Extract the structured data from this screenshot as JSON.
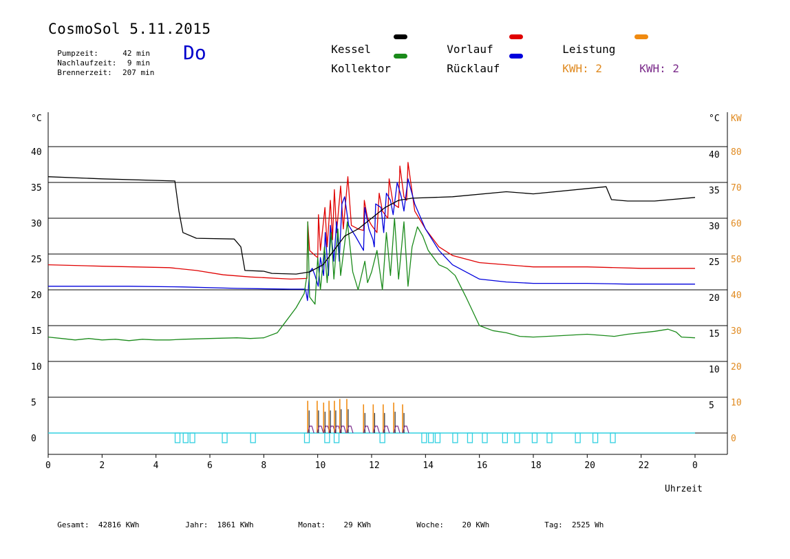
{
  "header": {
    "title": "CosmoSol 5.11.2015",
    "day": "Do",
    "info": [
      {
        "label": "Pumpzeit:",
        "value": "42 min"
      },
      {
        "label": "Nachlaufzeit:",
        "value": "9 min"
      },
      {
        "label": "Brennerzeit:",
        "value": "207 min"
      }
    ]
  },
  "legend": [
    {
      "label": "Kessel",
      "color": "#000000"
    },
    {
      "label": "Vorlauf",
      "color": "#e00000"
    },
    {
      "label": "Leistung",
      "color": "#f08a10"
    },
    {
      "label": "Kollektor",
      "color": "#1a8a1a"
    },
    {
      "label": "Rücklauf",
      "color": "#0000dd"
    },
    {
      "label": "KWH: 2",
      "color": "#e08a20"
    },
    {
      "label": "KWH: 2",
      "color": "#7a2a8a"
    }
  ],
  "footer": [
    {
      "label": "Gesamt:",
      "value": "42816 KWh"
    },
    {
      "label": "Jahr:",
      "value": "1861 KWh"
    },
    {
      "label": "Monat:",
      "value": "29 KWh"
    },
    {
      "label": "Woche:",
      "value": "20 KWh"
    },
    {
      "label": "Tag:",
      "value": "2525 Wh"
    }
  ],
  "chart_data": {
    "type": "line",
    "xlabel": "Uhrzeit",
    "x_ticks": [
      "0",
      "2",
      "4",
      "6",
      "8",
      "10",
      "12",
      "14",
      "16",
      "18",
      "20",
      "22",
      "0"
    ],
    "xlim": [
      0,
      24
    ],
    "left_axis": {
      "unit": "°C",
      "ticks": [
        0,
        5,
        10,
        15,
        20,
        25,
        30,
        35,
        40
      ],
      "range": [
        0,
        40
      ]
    },
    "right_axis_temp": {
      "unit": "°C",
      "ticks": [
        5,
        10,
        15,
        20,
        25,
        30,
        35,
        40
      ]
    },
    "right_axis_power": {
      "unit": "KW",
      "ticks": [
        0,
        10,
        20,
        30,
        40,
        50,
        60,
        70,
        80
      ],
      "range": [
        0,
        80
      ]
    },
    "series": [
      {
        "name": "Kessel",
        "color": "#000000",
        "points": [
          [
            0,
            35.8
          ],
          [
            2,
            35.5
          ],
          [
            4.7,
            35.2
          ],
          [
            4.85,
            31
          ],
          [
            5,
            28
          ],
          [
            5.5,
            27.2
          ],
          [
            6.9,
            27.1
          ],
          [
            7.15,
            26
          ],
          [
            7.3,
            22.7
          ],
          [
            8,
            22.6
          ],
          [
            8.3,
            22.3
          ],
          [
            9.2,
            22.2
          ],
          [
            9.7,
            22.5
          ],
          [
            10.2,
            23.5
          ],
          [
            10.6,
            25.5
          ],
          [
            11,
            27.5
          ],
          [
            11.5,
            28.5
          ],
          [
            12,
            30
          ],
          [
            12.5,
            31.5
          ],
          [
            13,
            32.5
          ],
          [
            13.5,
            32.8
          ],
          [
            15,
            33
          ],
          [
            17,
            33.7
          ],
          [
            18,
            33.4
          ],
          [
            20.7,
            34.4
          ],
          [
            20.9,
            32.6
          ],
          [
            21.5,
            32.4
          ],
          [
            22.5,
            32.4
          ],
          [
            24,
            32.9
          ]
        ]
      },
      {
        "name": "Vorlauf",
        "color": "#e00000",
        "points": [
          [
            0,
            23.5
          ],
          [
            2,
            23.3
          ],
          [
            4.5,
            23.1
          ],
          [
            5.5,
            22.7
          ],
          [
            6.5,
            22.1
          ],
          [
            7.5,
            21.8
          ],
          [
            9,
            21.5
          ],
          [
            9.6,
            21.6
          ],
          [
            9.63,
            29.5
          ],
          [
            9.7,
            25.5
          ],
          [
            9.9,
            24.8
          ],
          [
            10.0,
            24.5
          ],
          [
            10.03,
            30.5
          ],
          [
            10.1,
            25.5
          ],
          [
            10.27,
            31.5
          ],
          [
            10.35,
            26
          ],
          [
            10.47,
            32.5
          ],
          [
            10.55,
            27
          ],
          [
            10.62,
            34
          ],
          [
            10.7,
            28
          ],
          [
            10.85,
            34.5
          ],
          [
            10.95,
            28.5
          ],
          [
            11.12,
            35.8
          ],
          [
            11.25,
            29
          ],
          [
            11.5,
            28.5
          ],
          [
            11.7,
            28.3
          ],
          [
            11.73,
            32.5
          ],
          [
            11.85,
            30
          ],
          [
            12.0,
            29
          ],
          [
            12.2,
            28
          ],
          [
            12.28,
            33.5
          ],
          [
            12.4,
            31
          ],
          [
            12.6,
            30
          ],
          [
            12.65,
            35.5
          ],
          [
            12.8,
            32
          ],
          [
            13.0,
            31.5
          ],
          [
            13.05,
            37.3
          ],
          [
            13.2,
            33
          ],
          [
            13.3,
            32.5
          ],
          [
            13.35,
            37.8
          ],
          [
            13.6,
            31
          ],
          [
            14,
            28.5
          ],
          [
            14.5,
            26
          ],
          [
            15,
            24.8
          ],
          [
            16,
            23.8
          ],
          [
            17,
            23.5
          ],
          [
            18,
            23.2
          ],
          [
            20,
            23.2
          ],
          [
            22,
            23
          ],
          [
            24,
            23
          ]
        ]
      },
      {
        "name": "Rücklauf",
        "color": "#0000dd",
        "points": [
          [
            0,
            20.5
          ],
          [
            3,
            20.5
          ],
          [
            5,
            20.4
          ],
          [
            7,
            20.2
          ],
          [
            9,
            20.1
          ],
          [
            9.55,
            20.1
          ],
          [
            9.62,
            18.5
          ],
          [
            9.7,
            22.5
          ],
          [
            9.8,
            23
          ],
          [
            9.9,
            22
          ],
          [
            10.02,
            20.5
          ],
          [
            10.1,
            24.5
          ],
          [
            10.22,
            22
          ],
          [
            10.28,
            28
          ],
          [
            10.4,
            22
          ],
          [
            10.47,
            29
          ],
          [
            10.6,
            24
          ],
          [
            10.7,
            29.5
          ],
          [
            10.8,
            24
          ],
          [
            10.9,
            32
          ],
          [
            11.0,
            33
          ],
          [
            11.15,
            29
          ],
          [
            11.4,
            27.5
          ],
          [
            11.7,
            25.5
          ],
          [
            11.75,
            31.5
          ],
          [
            11.9,
            28.5
          ],
          [
            12.05,
            27
          ],
          [
            12.1,
            26
          ],
          [
            12.15,
            32
          ],
          [
            12.35,
            31.5
          ],
          [
            12.45,
            28
          ],
          [
            12.55,
            33.5
          ],
          [
            12.7,
            32.5
          ],
          [
            12.8,
            30.5
          ],
          [
            12.95,
            35
          ],
          [
            13.1,
            33
          ],
          [
            13.2,
            31
          ],
          [
            13.35,
            35.5
          ],
          [
            13.6,
            32
          ],
          [
            14,
            28.5
          ],
          [
            14.5,
            25.5
          ],
          [
            15,
            23.5
          ],
          [
            16,
            21.5
          ],
          [
            17,
            21.1
          ],
          [
            18,
            20.9
          ],
          [
            20,
            20.9
          ],
          [
            21.5,
            20.8
          ],
          [
            24,
            20.8
          ]
        ]
      },
      {
        "name": "Kollektor",
        "color": "#1a8a1a",
        "points": [
          [
            0,
            13.4
          ],
          [
            0.5,
            13.2
          ],
          [
            1,
            13
          ],
          [
            1.5,
            13.2
          ],
          [
            2,
            13
          ],
          [
            2.5,
            13.1
          ],
          [
            3,
            12.9
          ],
          [
            3.5,
            13.1
          ],
          [
            4,
            13
          ],
          [
            4.5,
            13
          ],
          [
            5,
            13.1
          ],
          [
            6,
            13.2
          ],
          [
            7,
            13.3
          ],
          [
            7.5,
            13.2
          ],
          [
            8,
            13.3
          ],
          [
            8.5,
            14
          ],
          [
            8.8,
            15.5
          ],
          [
            9.2,
            17.5
          ],
          [
            9.5,
            19.5
          ],
          [
            9.6,
            22
          ],
          [
            9.63,
            29.5
          ],
          [
            9.7,
            19
          ],
          [
            9.9,
            18
          ],
          [
            10.0,
            24.5
          ],
          [
            10.1,
            20
          ],
          [
            10.25,
            26
          ],
          [
            10.35,
            21
          ],
          [
            10.5,
            28
          ],
          [
            10.6,
            21.5
          ],
          [
            10.75,
            28.5
          ],
          [
            10.85,
            22
          ],
          [
            11.1,
            29.5
          ],
          [
            11.3,
            22.5
          ],
          [
            11.5,
            20
          ],
          [
            11.75,
            24
          ],
          [
            11.85,
            21
          ],
          [
            12.0,
            22.5
          ],
          [
            12.2,
            25.5
          ],
          [
            12.4,
            20
          ],
          [
            12.55,
            28
          ],
          [
            12.7,
            22
          ],
          [
            12.85,
            30
          ],
          [
            13.0,
            21.5
          ],
          [
            13.2,
            29.5
          ],
          [
            13.35,
            20.5
          ],
          [
            13.5,
            26
          ],
          [
            13.7,
            28.8
          ],
          [
            13.9,
            27.5
          ],
          [
            14.1,
            25.5
          ],
          [
            14.3,
            24.5
          ],
          [
            14.5,
            23.5
          ],
          [
            14.8,
            23
          ],
          [
            15.1,
            22
          ],
          [
            15.5,
            19
          ],
          [
            16,
            15
          ],
          [
            16.5,
            14.3
          ],
          [
            17,
            14
          ],
          [
            17.5,
            13.5
          ],
          [
            18,
            13.4
          ],
          [
            19,
            13.6
          ],
          [
            20,
            13.8
          ],
          [
            21,
            13.5
          ],
          [
            21.5,
            13.8
          ],
          [
            22.5,
            14.2
          ],
          [
            23,
            14.5
          ],
          [
            23.3,
            14.1
          ],
          [
            23.5,
            13.4
          ],
          [
            24,
            13.3
          ]
        ]
      }
    ],
    "power_spikes_kw": [
      [
        9.63,
        9
      ],
      [
        9.98,
        9
      ],
      [
        10.22,
        8.5
      ],
      [
        10.42,
        9
      ],
      [
        10.62,
        9
      ],
      [
        10.82,
        9.5
      ],
      [
        11.08,
        9.5
      ],
      [
        11.7,
        8
      ],
      [
        12.06,
        8
      ],
      [
        12.43,
        8
      ],
      [
        12.82,
        8.5
      ],
      [
        13.15,
        8
      ]
    ],
    "burner_events_h": [
      4.8,
      5.1,
      5.35,
      6.55,
      7.6,
      9.6,
      10.35,
      10.7,
      12.4,
      13.95,
      14.2,
      14.45,
      15.1,
      15.65,
      16.2,
      16.95,
      17.4,
      18.05,
      18.6,
      19.65,
      20.3,
      20.95
    ]
  }
}
